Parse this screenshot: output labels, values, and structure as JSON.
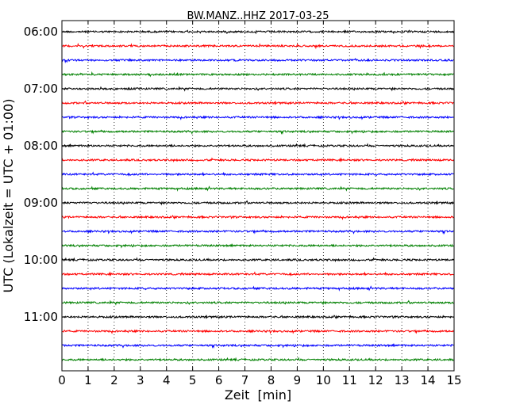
{
  "chart_data": {
    "type": "line",
    "title": "BW.MANZ..HHZ 2017-03-25",
    "xlabel": "Zeit  [min]",
    "ylabel": "UTC (Lokalzeit = UTC + 01:00)",
    "xlim": [
      0,
      15
    ],
    "x_ticks": [
      "0",
      "1",
      "2",
      "3",
      "4",
      "5",
      "6",
      "7",
      "8",
      "9",
      "10",
      "11",
      "12",
      "13",
      "14",
      "15"
    ],
    "y_ticks": [
      "06:00",
      "07:00",
      "08:00",
      "09:00",
      "10:00",
      "11:00"
    ],
    "grid": "vertical dotted",
    "trace_colors": [
      "#000000",
      "#ff0000",
      "#0000ff",
      "#008000"
    ],
    "trace_count": 24,
    "trace_start": "06:00",
    "trace_minutes": 15
  }
}
